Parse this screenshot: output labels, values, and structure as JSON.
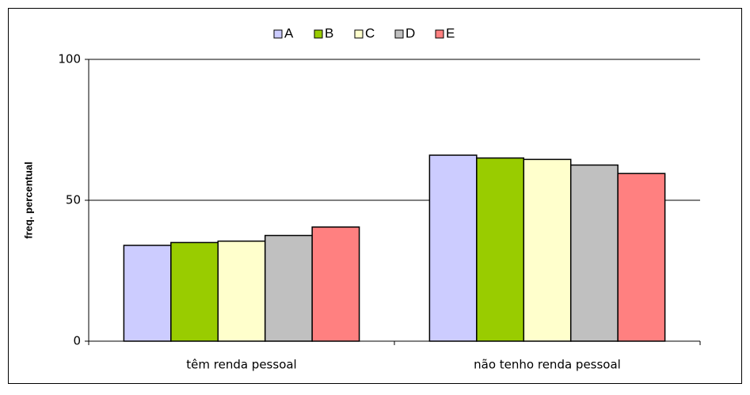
{
  "chart_data": {
    "type": "bar",
    "y_label": "freq. percentual",
    "categories": [
      "têm renda pessoal",
      "não tenho renda pessoal"
    ],
    "series": [
      {
        "name": "A",
        "color": "#ccccff",
        "values": [
          34,
          66
        ]
      },
      {
        "name": "B",
        "color": "#99cc00",
        "values": [
          35,
          65
        ]
      },
      {
        "name": "C",
        "color": "#ffffcc",
        "values": [
          35.5,
          64.5
        ]
      },
      {
        "name": "D",
        "color": "#c0c0c0",
        "values": [
          37.5,
          62.5
        ]
      },
      {
        "name": "E",
        "color": "#ff8080",
        "values": [
          40.5,
          59.5
        ]
      }
    ],
    "ylim": [
      0,
      100
    ],
    "yticks": [
      0,
      50,
      100
    ],
    "grid": true,
    "legend": "top"
  }
}
